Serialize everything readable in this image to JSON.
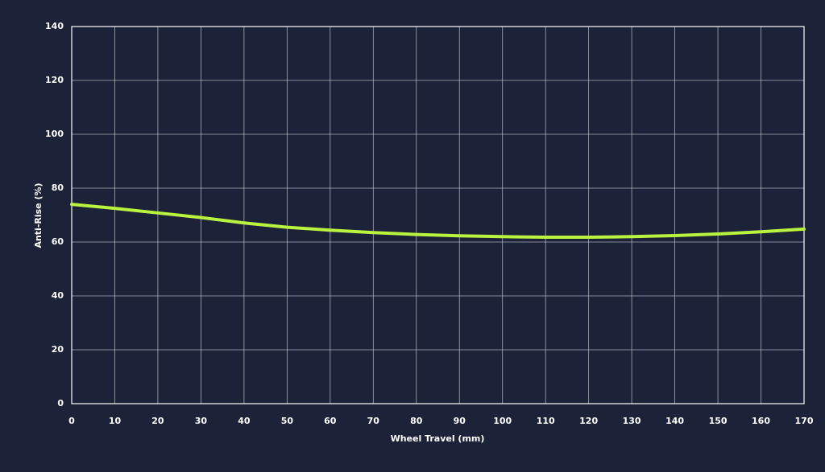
{
  "chart_data": {
    "type": "line",
    "x_label": "Wheel Travel (mm)",
    "y_label": "Anti-Rise (%)",
    "x": [
      0,
      10,
      20,
      30,
      40,
      50,
      60,
      70,
      80,
      90,
      100,
      110,
      120,
      130,
      140,
      150,
      160,
      170
    ],
    "series": [
      {
        "color": "#b9f23f",
        "values": [
          74,
          72.5,
          70.8,
          69.1,
          67.1,
          65.5,
          64.4,
          63.5,
          62.8,
          62.3,
          62,
          61.8,
          61.8,
          62,
          62.4,
          63,
          63.8,
          64.8
        ]
      }
    ],
    "xlim": [
      0,
      170
    ],
    "ylim": [
      0,
      140
    ],
    "xticks": [
      0,
      10,
      20,
      30,
      40,
      50,
      60,
      70,
      80,
      90,
      100,
      110,
      120,
      130,
      140,
      150,
      160,
      170
    ],
    "yticks": [
      0,
      20,
      40,
      60,
      80,
      100,
      120,
      140
    ],
    "grid": true
  }
}
